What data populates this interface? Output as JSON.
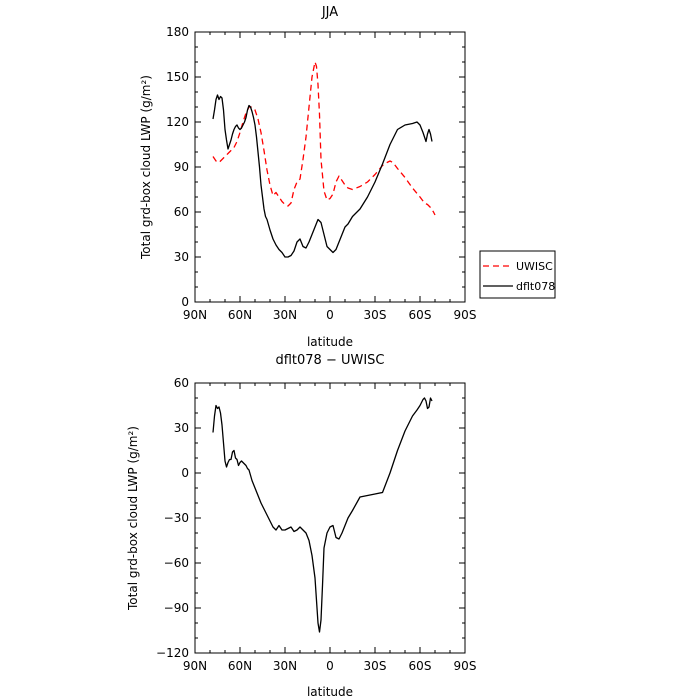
{
  "chart_data": [
    {
      "type": "line",
      "title": "JJA",
      "xlabel": "latitude",
      "ylabel": "Total grd-box cloud LWP (g/m²)",
      "xlim": [
        90,
        -90
      ],
      "ylim": [
        0,
        180
      ],
      "x_ticks": [
        90,
        60,
        30,
        0,
        -30,
        -60,
        -90
      ],
      "x_tick_labels": [
        "90N",
        "60N",
        "30N",
        "0",
        "30S",
        "60S",
        "90S"
      ],
      "y_ticks": [
        0,
        30,
        60,
        90,
        120,
        150,
        180
      ],
      "y_tick_labels": [
        "0",
        "30",
        "60",
        "90",
        "120",
        "150",
        "180"
      ],
      "legend": "outside-right",
      "series": [
        {
          "name": "UWISC",
          "color": "#ff0000",
          "dash": "dashed",
          "x": [
            78,
            76,
            74,
            72,
            70,
            68,
            66,
            64,
            62,
            60,
            58,
            56,
            54,
            52,
            50,
            48,
            46,
            44,
            42,
            40,
            38,
            36,
            34,
            32,
            30,
            28,
            26,
            24,
            22,
            20,
            18,
            16,
            14,
            12,
            10,
            9,
            8,
            7,
            6,
            4,
            2,
            0,
            -2,
            -4,
            -6,
            -8,
            -10,
            -12,
            -15,
            -20,
            -25,
            -30,
            -35,
            -38,
            -40,
            -42,
            -45,
            -50,
            -55,
            -60,
            -63,
            -65,
            -67,
            -69,
            -70
          ],
          "y": [
            97,
            94,
            93,
            95,
            97,
            99,
            101,
            103,
            107,
            113,
            120,
            126,
            130,
            130,
            128,
            122,
            113,
            101,
            88,
            78,
            71,
            73,
            70,
            67,
            65,
            64,
            66,
            75,
            80,
            82,
            95,
            110,
            130,
            150,
            160,
            157,
            145,
            125,
            95,
            74,
            68,
            69,
            72,
            80,
            84,
            81,
            78,
            76,
            75,
            77,
            80,
            85,
            91,
            93,
            94,
            93,
            89,
            83,
            76,
            70,
            66,
            65,
            63,
            60,
            58
          ]
        },
        {
          "name": "dflt078",
          "color": "#000000",
          "dash": "solid",
          "x": [
            78,
            77,
            76,
            75,
            74,
            73,
            72,
            71,
            70,
            69,
            68,
            67,
            66,
            65,
            64,
            63,
            62,
            61,
            60,
            59,
            58,
            57,
            56,
            55,
            54,
            53,
            52,
            51,
            50,
            49,
            48,
            47,
            46,
            45,
            44,
            43,
            42,
            40,
            38,
            36,
            34,
            32,
            30,
            28,
            26,
            24,
            22,
            20,
            18,
            16,
            14,
            12,
            10,
            8,
            6,
            4,
            2,
            0,
            -2,
            -4,
            -6,
            -8,
            -10,
            -12,
            -15,
            -20,
            -25,
            -30,
            -35,
            -40,
            -45,
            -50,
            -55,
            -58,
            -60,
            -62,
            -63,
            -64,
            -65,
            -66,
            -67,
            -68
          ],
          "y": [
            122,
            128,
            135,
            138,
            135,
            137,
            136,
            128,
            115,
            108,
            102,
            105,
            108,
            112,
            115,
            117,
            118,
            116,
            115,
            116,
            118,
            120,
            123,
            128,
            131,
            130,
            127,
            123,
            118,
            110,
            100,
            90,
            78,
            70,
            62,
            57,
            55,
            48,
            42,
            38,
            35,
            33,
            30,
            30,
            31,
            34,
            40,
            42,
            37,
            36,
            40,
            45,
            50,
            55,
            53,
            45,
            37,
            35,
            33,
            35,
            40,
            45,
            50,
            52,
            57,
            62,
            70,
            80,
            92,
            105,
            115,
            118,
            119,
            120,
            118,
            113,
            110,
            107,
            112,
            115,
            112,
            107
          ]
        }
      ]
    },
    {
      "type": "line",
      "title": "dflt078 − UWISC",
      "xlabel": "latitude",
      "ylabel": "Total grd-box cloud LWP (g/m²)",
      "xlim": [
        90,
        -90
      ],
      "ylim": [
        -120,
        60
      ],
      "x_ticks": [
        90,
        60,
        30,
        0,
        -30,
        -60,
        -90
      ],
      "x_tick_labels": [
        "90N",
        "60N",
        "30N",
        "0",
        "30S",
        "60S",
        "90S"
      ],
      "y_ticks": [
        -120,
        -90,
        -60,
        -30,
        0,
        30,
        60
      ],
      "y_tick_labels": [
        "−120",
        "−90",
        "−60",
        "−30",
        "0",
        "30",
        "60"
      ],
      "series": [
        {
          "color": "#000000",
          "dash": "solid",
          "x": [
            78,
            77,
            76,
            75,
            74,
            73,
            72,
            71,
            70,
            69,
            68,
            67,
            66,
            65,
            64,
            63,
            62,
            61,
            60,
            59,
            58,
            57,
            56,
            55,
            54,
            52,
            50,
            48,
            46,
            44,
            42,
            40,
            38,
            36,
            34,
            32,
            30,
            28,
            26,
            24,
            22,
            20,
            18,
            16,
            14,
            12,
            10,
            9,
            8,
            7,
            6,
            5,
            4,
            2,
            0,
            -2,
            -4,
            -6,
            -8,
            -10,
            -12,
            -15,
            -20,
            -25,
            -30,
            -35,
            -40,
            -45,
            -50,
            -55,
            -58,
            -60,
            -62,
            -63,
            -64,
            -65,
            -66,
            -67,
            -68
          ],
          "y": [
            27,
            38,
            45,
            43,
            44,
            40,
            32,
            20,
            8,
            4,
            7,
            9,
            9,
            14,
            15,
            10,
            9,
            5,
            7,
            8,
            7,
            6,
            5,
            3,
            2,
            -5,
            -10,
            -15,
            -20,
            -24,
            -28,
            -32,
            -36,
            -38,
            -35,
            -38,
            -38,
            -37,
            -36,
            -39,
            -38,
            -36,
            -38,
            -40,
            -45,
            -55,
            -70,
            -85,
            -100,
            -106,
            -98,
            -75,
            -50,
            -40,
            -36,
            -35,
            -43,
            -44,
            -40,
            -35,
            -30,
            -25,
            -16,
            -15,
            -14,
            -13,
            0,
            15,
            28,
            38,
            42,
            45,
            49,
            50,
            48,
            43,
            44,
            50,
            48
          ]
        }
      ]
    }
  ]
}
